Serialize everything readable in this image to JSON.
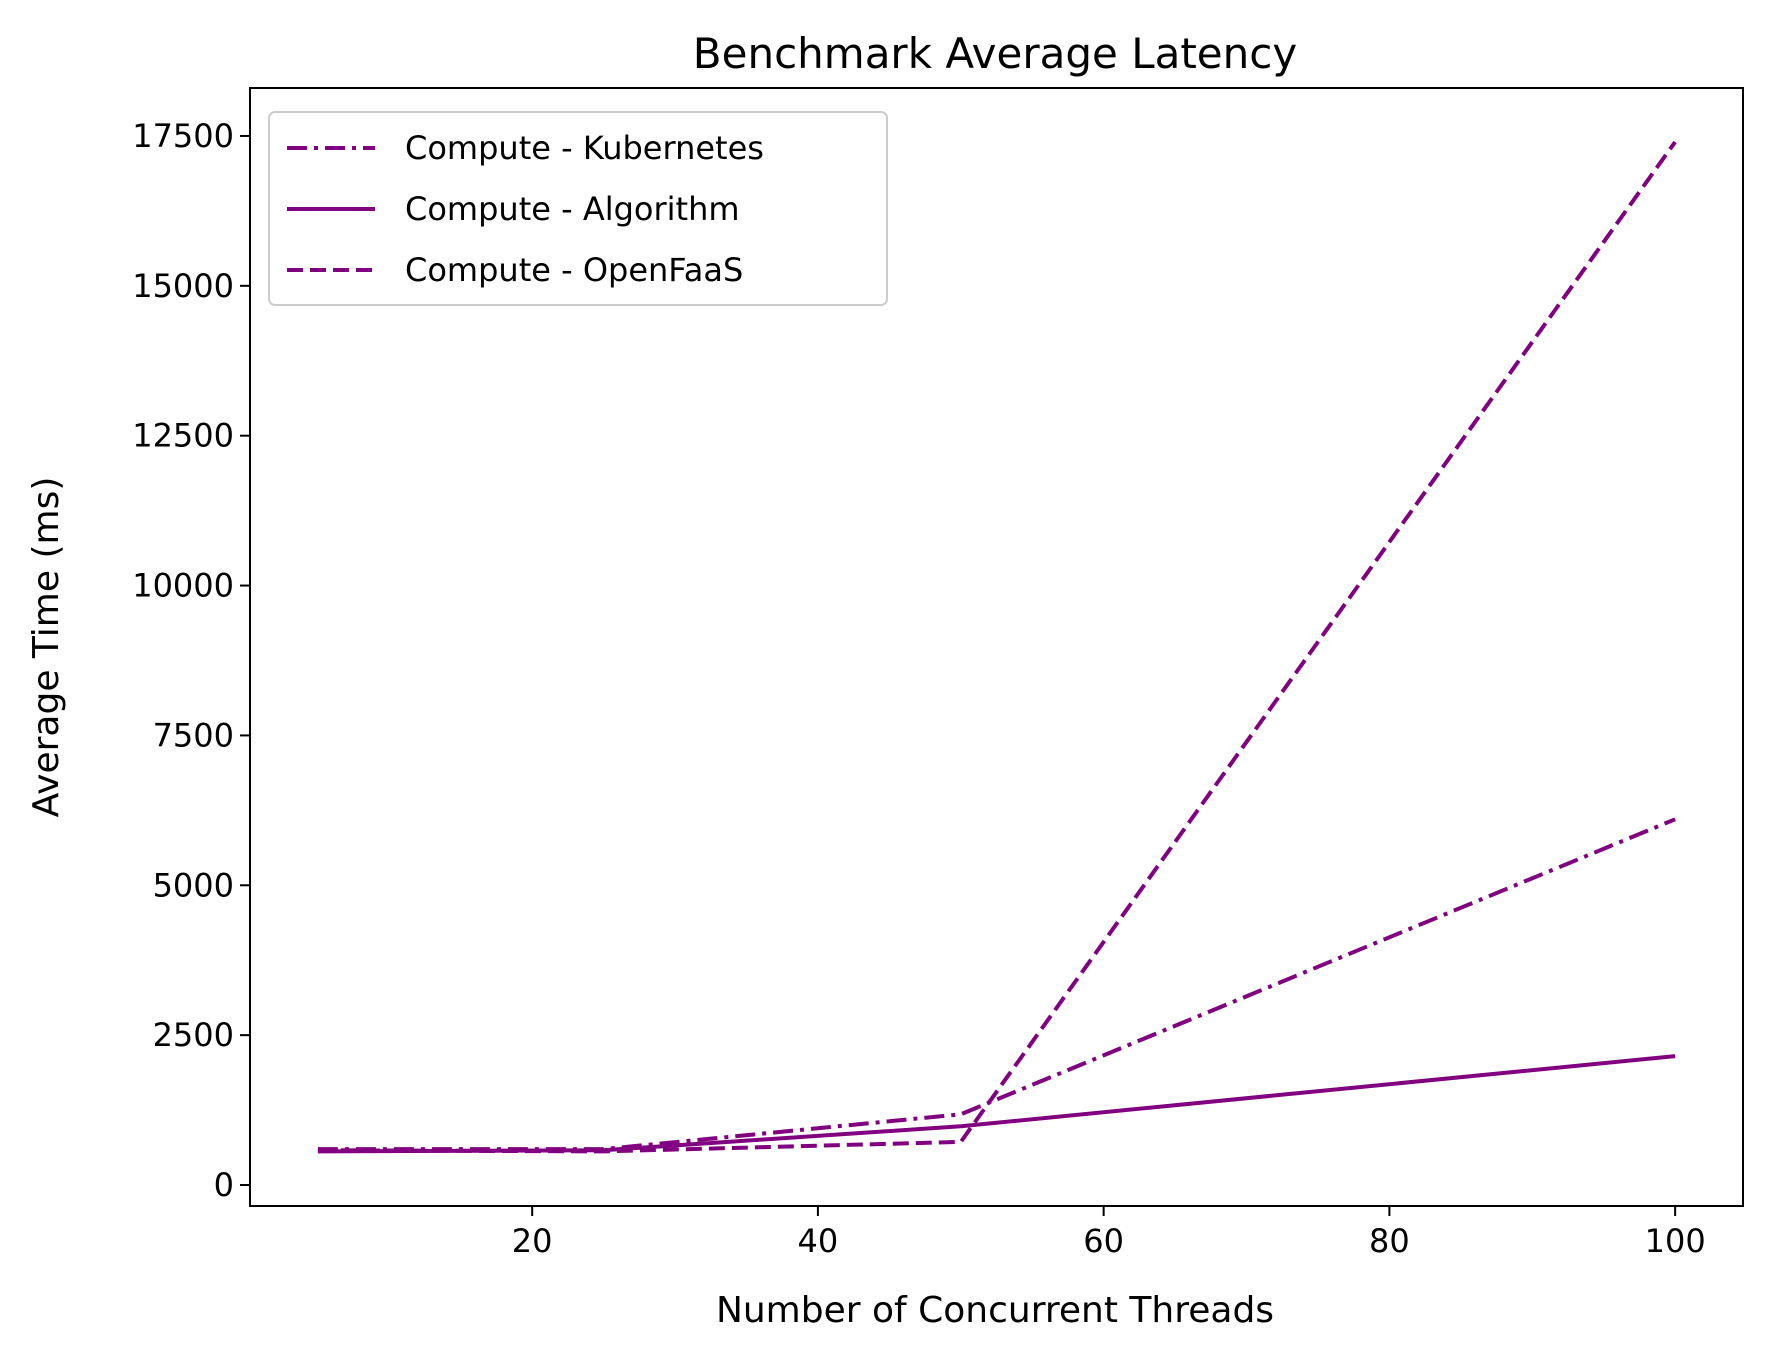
{
  "chart_data": {
    "type": "line",
    "title": "Benchmark Average Latency",
    "xlabel": "Number of Concurrent Threads",
    "ylabel": "Average Time (ms)",
    "xlim": [
      0.25,
      104.75
    ],
    "ylim": [
      -350,
      18300
    ],
    "xticks": [
      20,
      40,
      60,
      80,
      100
    ],
    "yticks": [
      0,
      2500,
      5000,
      7500,
      10000,
      12500,
      15000,
      17500
    ],
    "grid": false,
    "legend_position": "upper-left",
    "series": [
      {
        "name": "Compute - Kubernetes",
        "style": "dashdot",
        "color": "#800080",
        "x": [
          5,
          25,
          50,
          100
        ],
        "y": [
          600,
          600,
          1180,
          6100
        ]
      },
      {
        "name": "Compute - Algorithm",
        "style": "solid",
        "color": "#800080",
        "x": [
          5,
          25,
          50,
          100
        ],
        "y": [
          560,
          580,
          980,
          2150
        ]
      },
      {
        "name": "Compute - OpenFaaS",
        "style": "dashed",
        "color": "#800080",
        "x": [
          5,
          25,
          50,
          100
        ],
        "y": [
          580,
          560,
          720,
          17400
        ]
      }
    ]
  }
}
